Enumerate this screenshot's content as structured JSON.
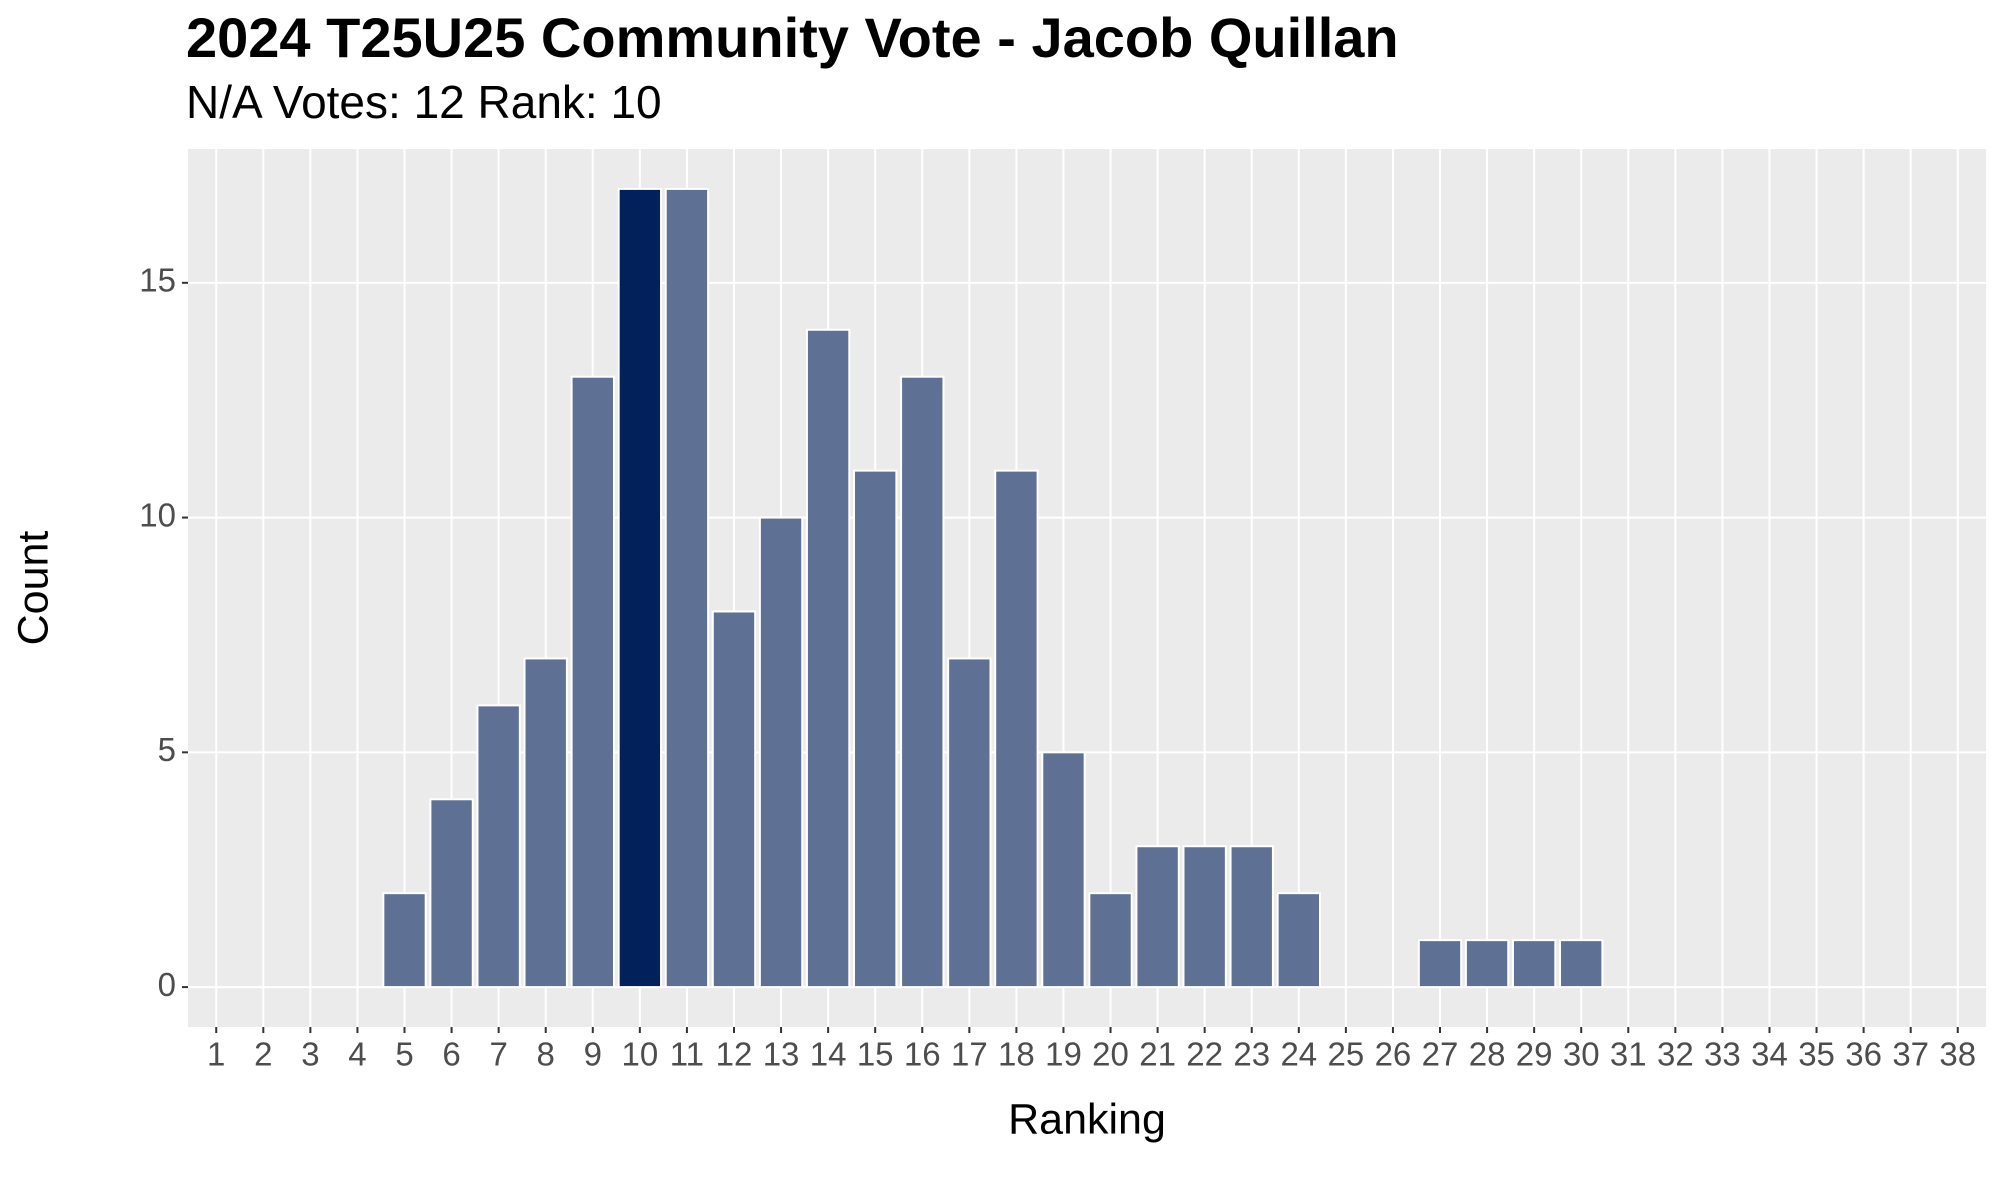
{
  "chart_data": {
    "type": "bar",
    "title": "2024 T25U25 Community Vote - Jacob Quillan",
    "subtitle": "N/A Votes: 12  Rank: 10",
    "x_label": "Ranking",
    "y_label": "Count",
    "categories": [
      1,
      2,
      3,
      4,
      5,
      6,
      7,
      8,
      9,
      10,
      11,
      12,
      13,
      14,
      15,
      16,
      17,
      18,
      19,
      20,
      21,
      22,
      23,
      24,
      25,
      26,
      27,
      28,
      29,
      30,
      31,
      32,
      33,
      34,
      35,
      36,
      37,
      38
    ],
    "values": [
      0,
      0,
      0,
      0,
      2,
      4,
      6,
      7,
      13,
      17,
      17,
      8,
      10,
      14,
      11,
      13,
      7,
      11,
      5,
      2,
      3,
      3,
      3,
      2,
      0,
      0,
      1,
      1,
      1,
      1,
      0,
      0,
      0,
      0,
      0,
      0,
      0,
      0
    ],
    "color": "#5e7093",
    "highlight_category": 10,
    "highlight_color": "#02205a",
    "xlim": [
      0.4,
      38.6
    ],
    "ylim": [
      -0.85,
      17.85
    ],
    "yticks": [
      0,
      5,
      10,
      15
    ],
    "grid": true
  }
}
